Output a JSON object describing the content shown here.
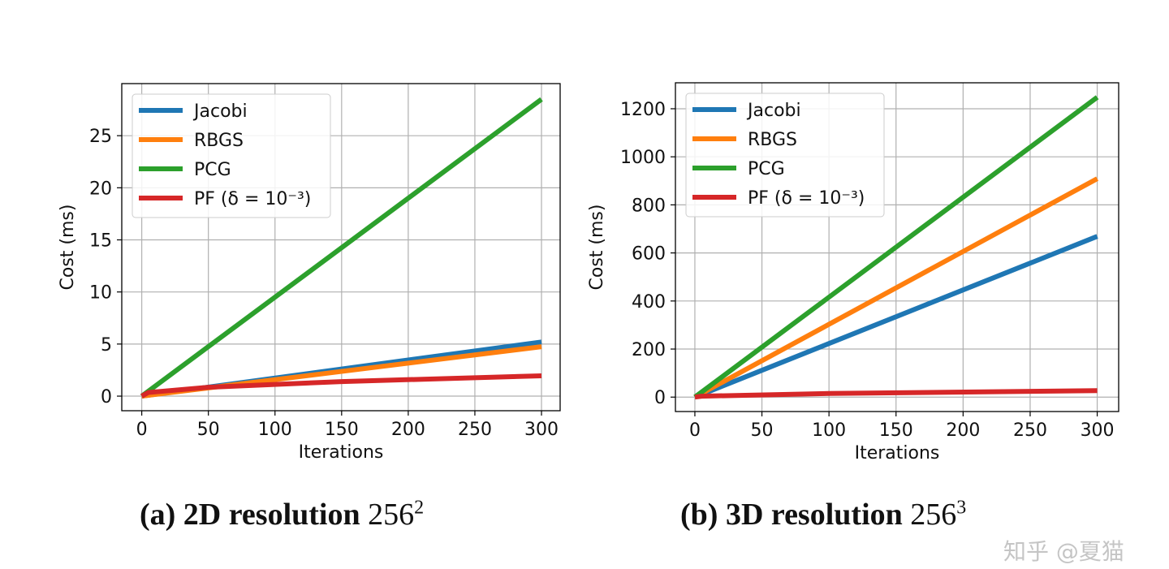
{
  "chart_data": [
    {
      "type": "line",
      "caption": "(a) 2D resolution",
      "caption_math": "256",
      "caption_exp": "2",
      "xlabel": "Iterations",
      "ylabel": "Cost (ms)",
      "xlim": [
        -15,
        314
      ],
      "ylim": [
        -1.4,
        30
      ],
      "xticks": [
        0,
        50,
        100,
        150,
        200,
        250,
        300
      ],
      "yticks": [
        0,
        5,
        10,
        15,
        20,
        25
      ],
      "grid": true,
      "legend_position": "top-left",
      "series": [
        {
          "name": "Jacobi",
          "color": "#1f77b4",
          "points": [
            [
              0,
              0
            ],
            [
              300,
              5.2
            ]
          ]
        },
        {
          "name": "RBGS",
          "color": "#ff7f0e",
          "points": [
            [
              0,
              0
            ],
            [
              300,
              4.75
            ]
          ]
        },
        {
          "name": "PCG",
          "color": "#2ca02c",
          "points": [
            [
              0,
              0
            ],
            [
              300,
              28.5
            ]
          ]
        },
        {
          "name": "PF (δ = 10⁻³)",
          "color": "#d62728",
          "points": [
            [
              0,
              0
            ],
            [
              5,
              0.35
            ],
            [
              50,
              0.85
            ],
            [
              150,
              1.4
            ],
            [
              300,
              1.95
            ]
          ]
        }
      ]
    },
    {
      "type": "line",
      "caption": "(b) 3D resolution",
      "caption_math": "256",
      "caption_exp": "3",
      "xlabel": "Iterations",
      "ylabel": "Cost (ms)",
      "xlim": [
        -14.5,
        316
      ],
      "ylim": [
        -60,
        1308
      ],
      "xticks": [
        0,
        50,
        100,
        150,
        200,
        250,
        300
      ],
      "yticks": [
        0,
        200,
        400,
        600,
        800,
        1000,
        1200
      ],
      "grid": true,
      "legend_position": "top-left",
      "series": [
        {
          "name": "Jacobi",
          "color": "#1f77b4",
          "points": [
            [
              0,
              0
            ],
            [
              300,
              669
            ]
          ]
        },
        {
          "name": "RBGS",
          "color": "#ff7f0e",
          "points": [
            [
              0,
              0
            ],
            [
              300,
              909
            ]
          ]
        },
        {
          "name": "PCG",
          "color": "#2ca02c",
          "points": [
            [
              0,
              0
            ],
            [
              300,
              1248
            ]
          ]
        },
        {
          "name": "PF (δ = 10⁻³)",
          "color": "#d62728",
          "points": [
            [
              0,
              0
            ],
            [
              5,
              4
            ],
            [
              100,
              15
            ],
            [
              300,
              27
            ]
          ]
        }
      ]
    }
  ],
  "watermark": "知乎 @夏猫"
}
